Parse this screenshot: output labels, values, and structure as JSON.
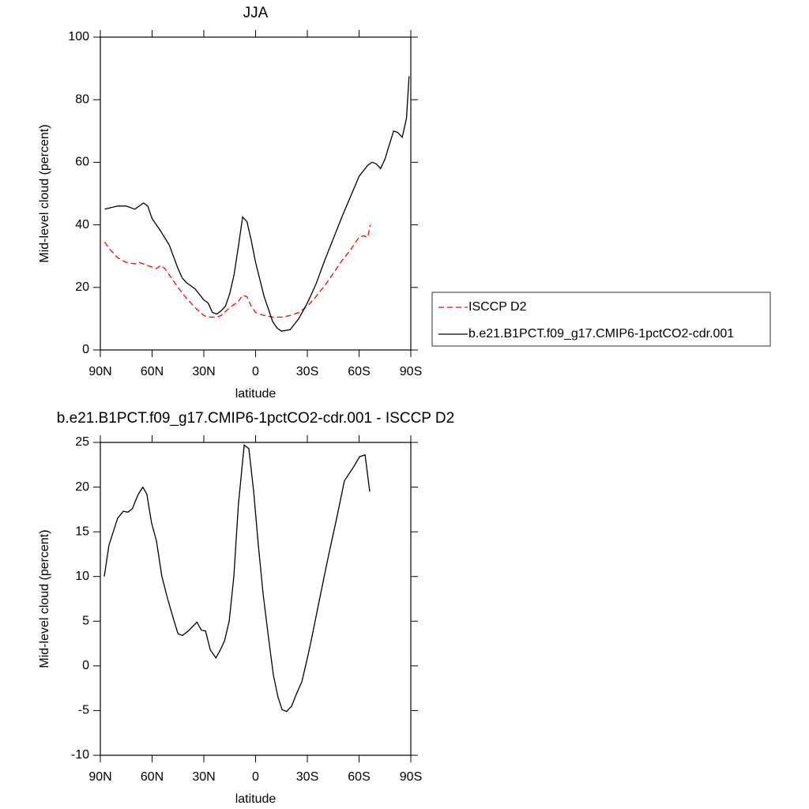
{
  "chart_data": [
    {
      "type": "line",
      "title": "JJA",
      "x_label": "latitude",
      "y_label": "Mid-level cloud (percent)",
      "xlim": [
        90,
        -90
      ],
      "ylim": [
        0,
        100
      ],
      "xticks": [
        {
          "value": 90,
          "label": "90N"
        },
        {
          "value": 60,
          "label": "60N"
        },
        {
          "value": 30,
          "label": "30N"
        },
        0,
        {
          "value": -30,
          "label": "30S"
        },
        {
          "value": -60,
          "label": "60S"
        },
        {
          "value": -90,
          "label": "90S"
        }
      ],
      "yticks": [
        0,
        20,
        40,
        60,
        80,
        100
      ],
      "legend": "right",
      "series": [
        {
          "name": "ISCCP D2",
          "color": "#ff0000",
          "dash": "dashed",
          "x": [
            87.5,
            85,
            80,
            75,
            70,
            67.5,
            65,
            60,
            57.5,
            55,
            52.5,
            50,
            45,
            40,
            35,
            30,
            27.5,
            25,
            22.5,
            20,
            15,
            10,
            7.5,
            5,
            2.5,
            0,
            -5,
            -10,
            -15,
            -20,
            -25,
            -30,
            -35,
            -40,
            -45,
            -50,
            -55,
            -60,
            -62.5,
            -65,
            -66.5
          ],
          "values": [
            34.5,
            32.5,
            29.5,
            28,
            27.5,
            28,
            27.5,
            26.5,
            26,
            27,
            26,
            24,
            20,
            16.5,
            13.5,
            11,
            10.5,
            10.5,
            10.5,
            11,
            13.5,
            15.5,
            17.5,
            17,
            14,
            12,
            11,
            10.5,
            10.5,
            11,
            12,
            14,
            17,
            20.5,
            24.5,
            28.5,
            32,
            36,
            36.5,
            36,
            40
          ]
        },
        {
          "name": "b.e21.B1PCT.f09_g17.CMIP6-1pctCO2-cdr.001",
          "color": "#000000",
          "dash": "solid",
          "x": [
            87.5,
            80,
            75,
            70,
            65,
            62.5,
            60,
            55,
            50,
            45,
            42.5,
            40,
            35,
            30,
            27.5,
            25,
            22.5,
            20,
            17.5,
            15,
            12.5,
            10,
            7.5,
            5,
            2.5,
            0,
            -5,
            -10,
            -12.5,
            -15,
            -20,
            -25,
            -30,
            -35,
            -40,
            -45,
            -50,
            -55,
            -60,
            -65,
            -67.5,
            -70,
            -72.5,
            -75,
            -77.5,
            -80,
            -82.5,
            -85,
            -87.5,
            -89
          ],
          "values": [
            45,
            46,
            46,
            45,
            47,
            46,
            42,
            38,
            33.5,
            26,
            23,
            21.5,
            19.5,
            16,
            15,
            12,
            11.5,
            12.5,
            14,
            18,
            24,
            33,
            42.5,
            41,
            35,
            28,
            17,
            9,
            7,
            6,
            6.5,
            10,
            15,
            21,
            28.5,
            35.5,
            42.5,
            49,
            55.5,
            59,
            60,
            59.5,
            58,
            61,
            65.5,
            70,
            69.5,
            68,
            74,
            87.5
          ]
        }
      ]
    },
    {
      "type": "line",
      "title": "b.e21.B1PCT.f09_g17.CMIP6-1pctCO2-cdr.001 - ISCCP D2",
      "x_label": "latitude",
      "y_label": "Mid-level cloud (percent)",
      "xlim": [
        90,
        -90
      ],
      "ylim": [
        -10,
        25
      ],
      "xticks": [
        {
          "value": 90,
          "label": "90N"
        },
        {
          "value": 60,
          "label": "60N"
        },
        {
          "value": 30,
          "label": "30N"
        },
        0,
        {
          "value": -30,
          "label": "30S"
        },
        {
          "value": -60,
          "label": "60S"
        },
        {
          "value": -90,
          "label": "90S"
        }
      ],
      "yticks": [
        -10,
        -5,
        0,
        5,
        10,
        15,
        20,
        25
      ],
      "series": [
        {
          "color": "#000000",
          "dash": "solid",
          "x": [
            87.7,
            85,
            80,
            76.7,
            74,
            71.4,
            68,
            65.3,
            63,
            60.3,
            57.5,
            54.3,
            51,
            48,
            45,
            42.4,
            39,
            37,
            34,
            31.4,
            29,
            26.3,
            23,
            20.4,
            18,
            15.3,
            12.6,
            10,
            6.6,
            3.9,
            1.1,
            -1.6,
            -4.4,
            -7.6,
            -10.3,
            -13,
            -15.4,
            -18,
            -20.9,
            -24,
            -26.8,
            -29.6,
            -31.9,
            -36.9,
            -41.9,
            -47,
            -51.5,
            -57,
            -60.3,
            -63.5,
            -66.2
          ],
          "values": [
            10,
            13.5,
            16.5,
            17.3,
            17.2,
            17.6,
            19.2,
            20,
            19.2,
            16,
            14,
            10,
            7.5,
            5.5,
            3.6,
            3.4,
            3.9,
            4.3,
            4.9,
            4,
            3.9,
            1.8,
            0.9,
            1.8,
            2.8,
            5,
            10,
            18,
            24.7,
            24.3,
            19.5,
            13.5,
            8,
            3,
            -1,
            -3.5,
            -4.9,
            -5.1,
            -4.5,
            -3,
            -1.8,
            0.5,
            2.5,
            7.3,
            12,
            16.5,
            20.7,
            22.3,
            23.4,
            23.6,
            19.5
          ]
        }
      ]
    }
  ]
}
